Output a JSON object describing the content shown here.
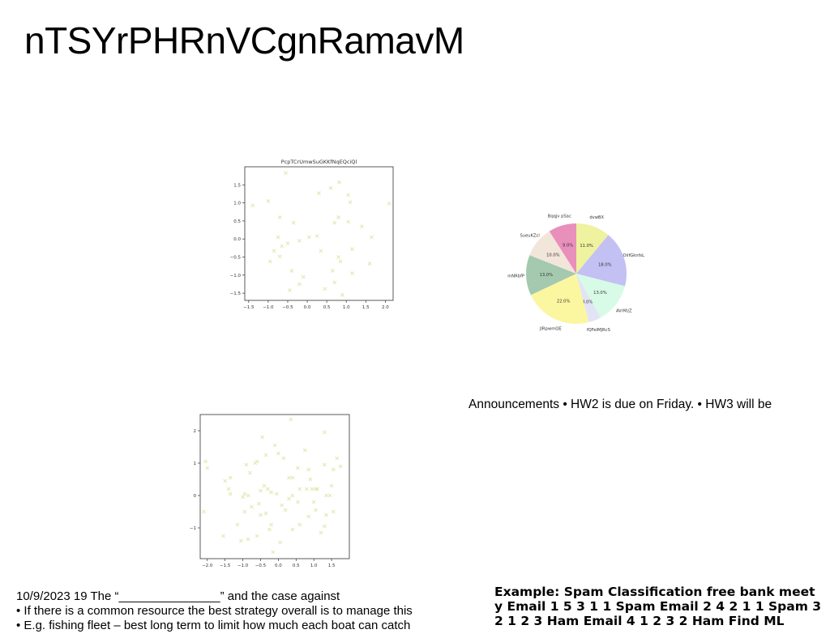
{
  "slide": {
    "title": "nTSYrPHRnVCgnRamavM",
    "announcement": "Announcements • HW2 is due on Friday. • HW3 will be",
    "notes": [
      "10/9/2023 19 The “_______________” and the case against",
      "• If there is a common resource the best strategy overall is to manage this",
      "• E.g. fishing fleet – best long term to limit how much each boat can catch"
    ],
    "example": "Example: Spam Classification free bank meet y Email 1 5 3 1 1 Spam Email 2 4 2 1 1 Spam 3 2 1 2 3 Ham Email 4 1 2 3 2 Ham Find ML"
  },
  "colors": {
    "scatter_marker": "#e3e8b4",
    "axes": "#333333"
  },
  "chart_data": [
    {
      "type": "scatter",
      "title": "PcpTCrUmwSuGKKfNqEQciQl",
      "marker": "x",
      "color": "#e3e8b4",
      "xlim": [
        -1.6,
        2.2
      ],
      "ylim": [
        -1.7,
        2.0
      ],
      "xticks": [
        -1.5,
        -1.0,
        -0.5,
        0.0,
        0.5,
        1.0,
        1.5,
        2.0
      ],
      "yticks": [
        -1.5,
        -1.0,
        -0.5,
        0.0,
        0.5,
        1.0,
        1.5
      ],
      "tick_labels_x": [
        "−1.5",
        "−1.0",
        "−0.5",
        "0.0",
        "0.5",
        "1.0",
        "1.5",
        "2.0"
      ],
      "tick_labels_y": [
        "−1.5",
        "−1.0",
        "−0.5",
        "0.0",
        "0.5",
        "1.0",
        "1.5"
      ],
      "points": [
        [
          -0.55,
          1.83
        ],
        [
          -1.4,
          0.93
        ],
        [
          -1.0,
          1.05
        ],
        [
          0.3,
          1.27
        ],
        [
          0.6,
          1.41
        ],
        [
          0.82,
          1.57
        ],
        [
          1.05,
          1.22
        ],
        [
          1.1,
          1.02
        ],
        [
          2.1,
          0.98
        ],
        [
          -0.7,
          0.6
        ],
        [
          -0.35,
          0.45
        ],
        [
          0.7,
          0.45
        ],
        [
          0.8,
          0.6
        ],
        [
          1.05,
          0.48
        ],
        [
          1.4,
          0.35
        ],
        [
          -0.75,
          0.05
        ],
        [
          -0.2,
          -0.05
        ],
        [
          0.05,
          0.05
        ],
        [
          0.25,
          0.08
        ],
        [
          -0.5,
          -0.12
        ],
        [
          -0.65,
          -0.2
        ],
        [
          1.65,
          0.05
        ],
        [
          -0.85,
          -0.33
        ],
        [
          0.35,
          -0.33
        ],
        [
          1.15,
          -0.28
        ],
        [
          -0.7,
          -0.48
        ],
        [
          -0.95,
          -0.62
        ],
        [
          0.8,
          -0.5
        ],
        [
          0.85,
          -0.62
        ],
        [
          1.6,
          -0.68
        ],
        [
          -0.4,
          -0.88
        ],
        [
          0.65,
          -0.88
        ],
        [
          1.15,
          -0.95
        ],
        [
          -0.1,
          -1.05
        ],
        [
          -0.2,
          -1.25
        ],
        [
          0.7,
          -1.2
        ],
        [
          0.45,
          -1.38
        ],
        [
          -0.45,
          -1.42
        ],
        [
          0.9,
          -1.55
        ]
      ]
    },
    {
      "type": "pie",
      "labels": [
        "dvwBX",
        "OiifGknfsL",
        "AVrMzZ",
        "fQFeIMJRcS",
        "JIRpwmQE",
        "mNRbfP",
        "SueuKZcl",
        "Bqqjv pSac"
      ],
      "values": [
        11.0,
        18.0,
        13.0,
        4.0,
        22.0,
        13.0,
        10.0,
        9.0
      ],
      "value_labels": [
        "11.0%",
        "18.0%",
        "13.0%",
        "4.0%",
        "22.0%",
        "13.0%",
        "10.0%",
        "9.0%"
      ],
      "colors": [
        "#eff29e",
        "#c3c0f4",
        "#d7fbe6",
        "#e3e3f6",
        "#fbf6a0",
        "#a4c9ae",
        "#f2e5d9",
        "#e98fbb"
      ],
      "start_angle_deg": 90,
      "direction": "clockwise"
    },
    {
      "type": "scatter",
      "marker": "x",
      "color": "#e3e8b4",
      "xlim": [
        -2.2,
        2.0
      ],
      "ylim": [
        -1.95,
        2.5
      ],
      "xticks": [
        -2.0,
        -1.5,
        -1.0,
        -0.5,
        0.0,
        0.5,
        1.0,
        1.5
      ],
      "yticks": [
        -1,
        0,
        1,
        2
      ],
      "tick_labels_x": [
        "−2.0",
        "−1.5",
        "−1.0",
        "−0.5",
        "0.0",
        "0.5",
        "1.0",
        "1.5"
      ],
      "tick_labels_y": [
        "−1",
        "0",
        "1",
        "2"
      ],
      "points": [
        [
          -2.1,
          -0.5
        ],
        [
          -2.05,
          1.05
        ],
        [
          -2.0,
          0.85
        ],
        [
          -1.5,
          0.45
        ],
        [
          -1.35,
          0.55
        ],
        [
          -1.4,
          0.2
        ],
        [
          -1.35,
          0.05
        ],
        [
          -1.15,
          -0.9
        ],
        [
          -1.55,
          -1.25
        ],
        [
          -0.9,
          0.95
        ],
        [
          -0.65,
          1.0
        ],
        [
          -0.6,
          1.05
        ],
        [
          -0.8,
          0.7
        ],
        [
          -1.0,
          -0.05
        ],
        [
          -0.95,
          0.05
        ],
        [
          -0.85,
          0.0
        ],
        [
          -0.5,
          0.15
        ],
        [
          -0.4,
          0.3
        ],
        [
          -0.3,
          0.2
        ],
        [
          -0.2,
          0.1
        ],
        [
          -0.55,
          -0.25
        ],
        [
          -0.75,
          -0.35
        ],
        [
          -0.95,
          -0.5
        ],
        [
          -1.05,
          -1.4
        ],
        [
          -0.85,
          -1.35
        ],
        [
          -0.6,
          -1.25
        ],
        [
          -0.5,
          -0.6
        ],
        [
          -0.35,
          -0.55
        ],
        [
          -0.25,
          -1.05
        ],
        [
          -0.15,
          -1.75
        ],
        [
          0.05,
          -1.45
        ],
        [
          0.1,
          -0.3
        ],
        [
          0.2,
          -0.45
        ],
        [
          0.0,
          1.3
        ],
        [
          0.15,
          1.15
        ],
        [
          0.3,
          0.55
        ],
        [
          0.4,
          0.55
        ],
        [
          0.35,
          2.35
        ],
        [
          -0.45,
          1.8
        ],
        [
          -0.1,
          1.55
        ],
        [
          0.4,
          0.0
        ],
        [
          0.55,
          -0.2
        ],
        [
          0.6,
          0.2
        ],
        [
          0.75,
          1.4
        ],
        [
          0.8,
          0.2
        ],
        [
          0.85,
          0.8
        ],
        [
          0.95,
          0.2
        ],
        [
          1.0,
          -0.2
        ],
        [
          1.05,
          -0.45
        ],
        [
          1.1,
          0.2
        ],
        [
          0.85,
          -0.65
        ],
        [
          0.6,
          -0.9
        ],
        [
          0.4,
          -1.05
        ],
        [
          1.05,
          0.2
        ],
        [
          1.2,
          -1.15
        ],
        [
          1.3,
          1.95
        ],
        [
          1.35,
          0.0
        ],
        [
          1.45,
          0.0
        ],
        [
          1.5,
          0.3
        ],
        [
          1.55,
          0.8
        ],
        [
          1.3,
          0.95
        ],
        [
          1.65,
          1.15
        ],
        [
          1.75,
          0.9
        ],
        [
          1.35,
          -0.6
        ],
        [
          1.55,
          -0.5
        ],
        [
          1.3,
          -0.95
        ],
        [
          0.3,
          -0.1
        ],
        [
          -0.05,
          0.05
        ],
        [
          0.55,
          0.85
        ],
        [
          -0.2,
          -0.9
        ],
        [
          0.9,
          0.5
        ],
        [
          -0.35,
          1.25
        ]
      ]
    }
  ]
}
